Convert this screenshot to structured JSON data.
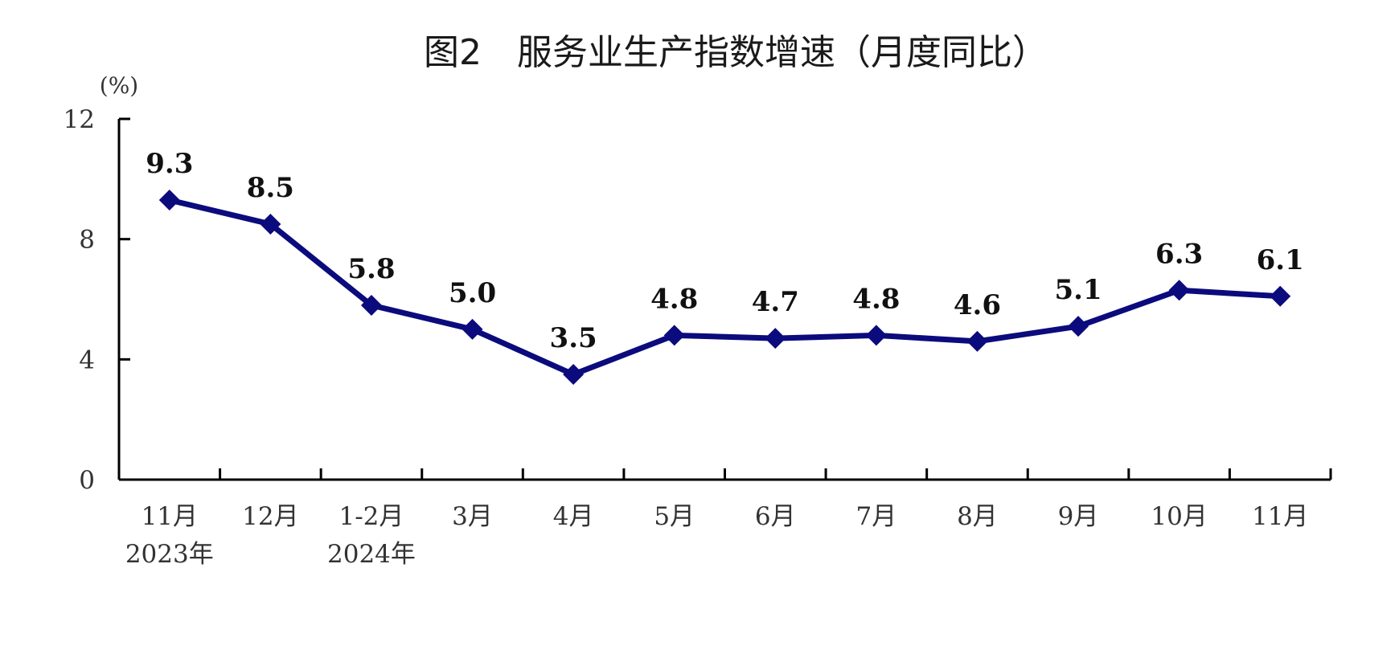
{
  "chart_data": {
    "type": "line",
    "title": "图2　服务业生产指数增速（月度同比）",
    "yunit": "(%)",
    "ylim": [
      0,
      12
    ],
    "yticks": [
      "0",
      "4",
      "8",
      "12"
    ],
    "categories": [
      "11月",
      "12月",
      "1-2月",
      "3月",
      "4月",
      "5月",
      "6月",
      "7月",
      "8月",
      "9月",
      "10月",
      "11月"
    ],
    "year_labels": [
      "2023年",
      "",
      "2024年",
      "",
      "",
      "",
      "",
      "",
      "",
      "",
      "",
      ""
    ],
    "values": [
      9.3,
      8.5,
      5.8,
      5.0,
      3.5,
      4.8,
      4.7,
      4.8,
      4.6,
      5.1,
      6.3,
      6.1
    ],
    "value_labels": [
      "9.3",
      "8.5",
      "5.8",
      "5.0",
      "3.5",
      "4.8",
      "4.7",
      "4.8",
      "4.6",
      "5.1",
      "6.3",
      "6.1"
    ],
    "line_color": "#0b0b7d",
    "grid": false,
    "legend": "none"
  }
}
